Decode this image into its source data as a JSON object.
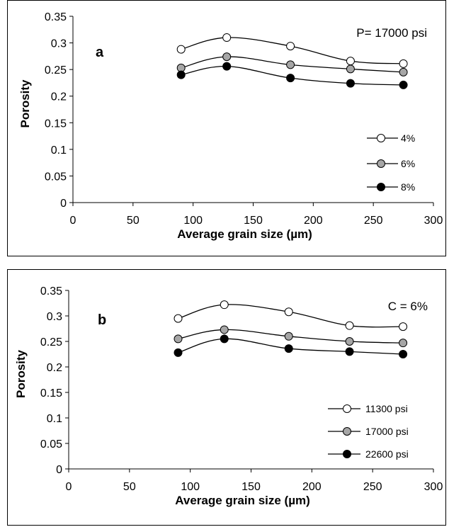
{
  "chart_data": [
    {
      "type": "line",
      "panel_label": "a",
      "annotation": "P= 17000 psi",
      "xlabel": "Average grain size (µm)",
      "ylabel": "Porosity",
      "xlim": [
        0,
        300
      ],
      "ylim": [
        0,
        0.35
      ],
      "xticks": [
        "0",
        "50",
        "100",
        "150",
        "200",
        "250",
        "300"
      ],
      "yticks": [
        "0",
        "0.05",
        "0.1",
        "0.15",
        "0.2",
        "0.25",
        "0.3",
        "0.35"
      ],
      "x": [
        90,
        128,
        181,
        231,
        275
      ],
      "series": [
        {
          "name": "4%",
          "marker": "open",
          "values": [
            0.288,
            0.31,
            0.294,
            0.266,
            0.261
          ]
        },
        {
          "name": "6%",
          "marker": "gray",
          "values": [
            0.253,
            0.274,
            0.259,
            0.251,
            0.245
          ]
        },
        {
          "name": "8%",
          "marker": "filled",
          "values": [
            0.24,
            0.256,
            0.234,
            0.224,
            0.221
          ]
        }
      ],
      "grid": false,
      "legend_position": "bottom-right",
      "colors": {
        "open": "#ffffff",
        "gray": "#a6a6a6",
        "filled": "#000000",
        "line": "#000000"
      }
    },
    {
      "type": "line",
      "panel_label": "b",
      "annotation": "C = 6%",
      "xlabel": "Average grain size (µm)",
      "ylabel": "Porosity",
      "xlim": [
        0,
        300
      ],
      "ylim": [
        0,
        0.35
      ],
      "xticks": [
        "0",
        "50",
        "100",
        "150",
        "200",
        "250",
        "300"
      ],
      "yticks": [
        "0",
        "0.05",
        "0.1",
        "0.15",
        "0.2",
        "0.25",
        "0.3",
        "0.35"
      ],
      "x": [
        90,
        128,
        181,
        231,
        275
      ],
      "series": [
        {
          "name": "11300 psi",
          "marker": "open",
          "values": [
            0.295,
            0.322,
            0.308,
            0.281,
            0.279
          ]
        },
        {
          "name": "17000 psi",
          "marker": "gray",
          "values": [
            0.255,
            0.273,
            0.26,
            0.25,
            0.247
          ]
        },
        {
          "name": "22600 psi",
          "marker": "filled",
          "values": [
            0.228,
            0.255,
            0.236,
            0.23,
            0.225
          ]
        }
      ],
      "grid": false,
      "legend_position": "bottom-right",
      "colors": {
        "open": "#ffffff",
        "gray": "#a6a6a6",
        "filled": "#000000",
        "line": "#000000"
      }
    }
  ]
}
